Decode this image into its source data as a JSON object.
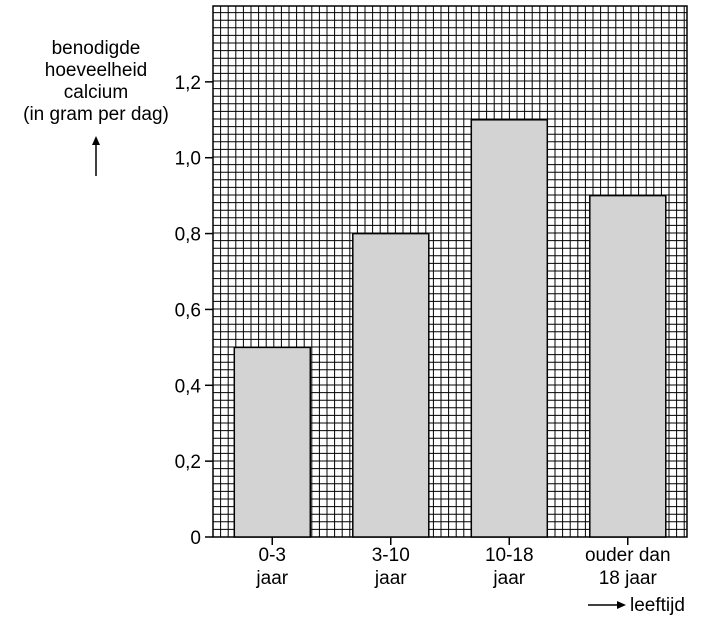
{
  "chart_data": {
    "type": "bar",
    "categories": [
      [
        "0-3",
        "jaar"
      ],
      [
        "3-10",
        "jaar"
      ],
      [
        "10-18",
        "jaar"
      ],
      [
        "ouder dan",
        "18 jaar"
      ]
    ],
    "values": [
      0.5,
      0.8,
      1.1,
      0.9
    ],
    "ylabel": [
      "benodigde",
      "hoeveelheid",
      "calcium",
      "(in gram per dag)"
    ],
    "xlabel": "leeftijd",
    "ylim": [
      0,
      1.4
    ],
    "yticks": [
      0,
      0.2,
      0.4,
      0.6,
      0.8,
      1.0,
      1.2
    ],
    "ytick_labels": [
      "0",
      "0,2",
      "0,4",
      "0,6",
      "0,8",
      "1,0",
      "1,2"
    ],
    "grid": true,
    "colors": {
      "bar": "#d3d3d3",
      "grid": "#000000",
      "axis": "#000000"
    }
  }
}
